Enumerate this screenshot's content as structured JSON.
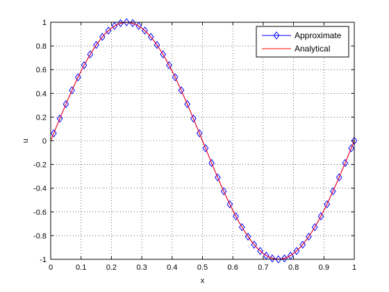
{
  "chart_data": {
    "type": "line",
    "xlabel": "x",
    "ylabel": "u",
    "xlim": [
      0,
      1
    ],
    "ylim": [
      -1,
      1
    ],
    "xticks": [
      0,
      0.1,
      0.2,
      0.3,
      0.4,
      0.5,
      0.6,
      0.7,
      0.8,
      0.9,
      1
    ],
    "xtick_labels": [
      "0",
      "0.1",
      "0.2",
      "0.3",
      "0.4",
      "0.5",
      "0.6",
      "0.7",
      "0.8",
      "0.9",
      "1"
    ],
    "yticks": [
      -1,
      -0.8,
      -0.6,
      -0.4,
      -0.2,
      0,
      0.2,
      0.4,
      0.6,
      0.8,
      1
    ],
    "ytick_labels": [
      "-1",
      "-0.8",
      "-0.6",
      "-0.4",
      "-0.2",
      "0",
      "0.2",
      "0.4",
      "0.6",
      "0.8",
      "1"
    ],
    "grid": true,
    "legend_position": "top-right",
    "series": [
      {
        "name": "Approximate",
        "color": "#0000ff",
        "marker": "diamond",
        "x": [
          0.01,
          0.03,
          0.05,
          0.07,
          0.09,
          0.11,
          0.13,
          0.15,
          0.17,
          0.19,
          0.21,
          0.23,
          0.25,
          0.27,
          0.29,
          0.31,
          0.33,
          0.35,
          0.37,
          0.39,
          0.41,
          0.43,
          0.45,
          0.47,
          0.49,
          0.51,
          0.53,
          0.55,
          0.57,
          0.59,
          0.61,
          0.63,
          0.65,
          0.67,
          0.69,
          0.71,
          0.73,
          0.75,
          0.77,
          0.79,
          0.81,
          0.83,
          0.85,
          0.87,
          0.89,
          0.91,
          0.93,
          0.95,
          0.97,
          0.99,
          1.0
        ],
        "y": [
          0.0628,
          0.1874,
          0.309,
          0.4258,
          0.5358,
          0.6374,
          0.729,
          0.809,
          0.8763,
          0.9298,
          0.9686,
          0.9921,
          1.0,
          0.9921,
          0.9686,
          0.9298,
          0.8763,
          0.809,
          0.729,
          0.6374,
          0.5358,
          0.4258,
          0.309,
          0.1874,
          0.0628,
          -0.0628,
          -0.1874,
          -0.309,
          -0.4258,
          -0.5358,
          -0.6374,
          -0.729,
          -0.809,
          -0.8763,
          -0.9298,
          -0.9686,
          -0.9921,
          -1.0,
          -0.9921,
          -0.9686,
          -0.9298,
          -0.8763,
          -0.809,
          -0.729,
          -0.6374,
          -0.5358,
          -0.4258,
          -0.309,
          -0.1874,
          -0.0628,
          0.0
        ]
      },
      {
        "name": "Analytical",
        "color": "#ff0000",
        "marker": "none",
        "x": [
          0,
          0.02,
          0.04,
          0.06,
          0.08,
          0.1,
          0.12,
          0.14,
          0.16,
          0.18,
          0.2,
          0.22,
          0.24,
          0.26,
          0.28,
          0.3,
          0.32,
          0.34,
          0.36,
          0.38,
          0.4,
          0.42,
          0.44,
          0.46,
          0.48,
          0.5,
          0.52,
          0.54,
          0.56,
          0.58,
          0.6,
          0.62,
          0.64,
          0.66,
          0.68,
          0.7,
          0.72,
          0.74,
          0.76,
          0.78,
          0.8,
          0.82,
          0.84,
          0.86,
          0.88,
          0.9,
          0.92,
          0.94,
          0.96,
          0.98,
          1.0
        ],
        "y": [
          0.0,
          0.1253,
          0.2487,
          0.3681,
          0.4818,
          0.5878,
          0.6845,
          0.7705,
          0.8443,
          0.9048,
          0.9511,
          0.9823,
          0.998,
          0.998,
          0.9823,
          0.9511,
          0.9048,
          0.8443,
          0.7705,
          0.6845,
          0.5878,
          0.4818,
          0.3681,
          0.2487,
          0.1253,
          0.0,
          -0.1253,
          -0.2487,
          -0.3681,
          -0.4818,
          -0.5878,
          -0.6845,
          -0.7705,
          -0.8443,
          -0.9048,
          -0.9511,
          -0.9823,
          -0.998,
          -0.998,
          -0.9823,
          -0.9511,
          -0.9048,
          -0.8443,
          -0.7705,
          -0.6845,
          -0.5878,
          -0.4818,
          -0.3681,
          -0.2487,
          -0.1253,
          0.0
        ]
      }
    ]
  }
}
